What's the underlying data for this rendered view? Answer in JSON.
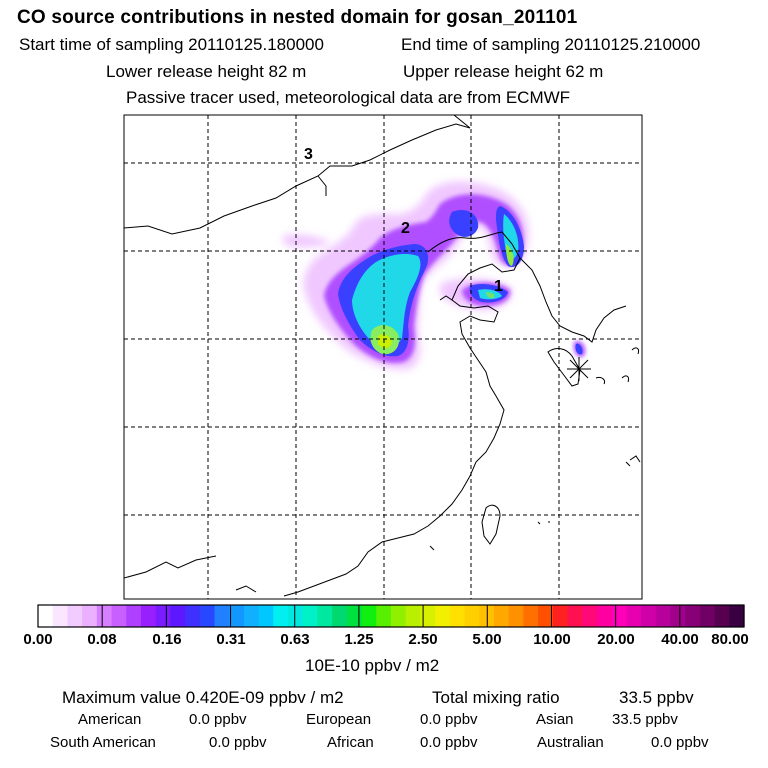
{
  "header": {
    "title": "CO  source contributions in nested domain for gosan_201101",
    "start_label": "Start time of sampling 20110125.180000",
    "end_label": "End time of sampling 20110125.210000",
    "lower_label": "Lower release height   82 m",
    "upper_label": "Upper release height   62 m",
    "tracer_note": "Passive tracer used, meteorological data are from ECMWF"
  },
  "map": {
    "markers": [
      "1",
      "2",
      "3"
    ],
    "receptor_symbol": "asterisk"
  },
  "chart_data": {
    "type": "heatmap",
    "title": "CO  source contributions in nested domain for gosan_201101",
    "colorbar": {
      "unit": "10E-10 ppbv / m2",
      "tick_labels": [
        "0.00",
        "0.08",
        "0.16",
        "0.31",
        "0.63",
        "1.25",
        "2.50",
        "5.00",
        "10.00",
        "20.00",
        "40.00",
        "80.00"
      ],
      "colors": [
        "#ffffff",
        "#fbe6ff",
        "#f3ccff",
        "#ebb0ff",
        "#d680ff",
        "#c860ff",
        "#b040ff",
        "#9820ff",
        "#7a1cff",
        "#5e18ff",
        "#4030ff",
        "#2848ff",
        "#2080ff",
        "#1098ff",
        "#10b0ff",
        "#00c8ff",
        "#00f0f0",
        "#00e8e0",
        "#00f0c8",
        "#00e8a0",
        "#00d870",
        "#00e040",
        "#10f010",
        "#58f000",
        "#90f000",
        "#b8f000",
        "#d8f000",
        "#f0f000",
        "#ffe000",
        "#ffd000",
        "#ffc000",
        "#ffa800",
        "#ff9000",
        "#ff7000",
        "#ff5000",
        "#ff2020",
        "#ff1050",
        "#ff0878",
        "#ff00a0",
        "#ff00b8",
        "#e800b0",
        "#d000a8",
        "#b8009c",
        "#a0008c",
        "#880078",
        "#700064",
        "#580050",
        "#380040"
      ]
    },
    "max_value_label": "Maximum value  0.420E-09 ppbv / m2",
    "total_label": "Total mixing ratio",
    "total_value": "33.5 ppbv",
    "regions": [
      {
        "name": "American",
        "value": "0.0 ppbv"
      },
      {
        "name": "European",
        "value": "0.0 ppbv"
      },
      {
        "name": "Asian",
        "value": "33.5 ppbv"
      },
      {
        "name": "South American",
        "value": "0.0 ppbv"
      },
      {
        "name": "African",
        "value": "0.0 ppbv"
      },
      {
        "name": "Australian",
        "value": "0.0 ppbv"
      }
    ]
  }
}
